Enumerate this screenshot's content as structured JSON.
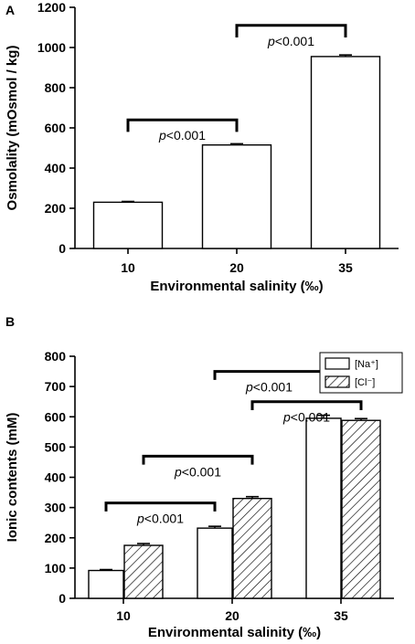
{
  "chart_data": [
    {
      "type": "bar",
      "panel_label": "A",
      "categories": [
        "10",
        "20",
        "35"
      ],
      "xlabel": "Environmental salinity (‰)",
      "ylabel": "Osmolality (mOsmol / kg)",
      "ylim": [
        0,
        1200
      ],
      "yticks": [
        "0",
        "200",
        "400",
        "600",
        "800",
        "1000",
        "1200"
      ],
      "series": [
        {
          "values": [
            230,
            515,
            955
          ],
          "errors": [
            4,
            6,
            8
          ],
          "fill": "#ffffff"
        }
      ],
      "annotations": [
        {
          "text": "p<0.001",
          "from": "10",
          "to": "20",
          "level": 640,
          "drop": 60
        },
        {
          "text": "p<0.001",
          "from": "20",
          "to": "35",
          "level": 1110,
          "drop": 60
        }
      ]
    },
    {
      "type": "bar",
      "panel_label": "B",
      "categories": [
        "10",
        "20",
        "35"
      ],
      "xlabel": "Environmental salinity (‰)",
      "ylabel": "Ionic contents (mM)",
      "ylim": [
        0,
        800
      ],
      "yticks": [
        "0",
        "100",
        "200",
        "300",
        "400",
        "500",
        "600",
        "700",
        "800"
      ],
      "legend": {
        "position": "top-right",
        "items": [
          "[Na⁺]",
          "[Cl⁻]"
        ]
      },
      "series": [
        {
          "name": "[Na⁺]",
          "values": [
            92,
            232,
            595
          ],
          "errors": [
            3,
            6,
            10
          ],
          "fill": "#ffffff"
        },
        {
          "name": "[Cl⁻]",
          "values": [
            175,
            330,
            588
          ],
          "errors": [
            6,
            6,
            6
          ],
          "fill": "hatch"
        }
      ],
      "annotations": [
        {
          "text": "p<0.001",
          "from": "10",
          "to": "20",
          "series": 0,
          "level": 315,
          "drop": 28
        },
        {
          "text": "p<0.001",
          "from": "10",
          "to": "20",
          "series": 1,
          "level": 470,
          "drop": 28
        },
        {
          "text": "p<0.001",
          "from": "20",
          "to": "35",
          "series": 0,
          "level": 750,
          "drop": 28
        },
        {
          "text": "p<0.001",
          "from": "20",
          "to": "35",
          "series": 1,
          "level": 650,
          "drop": 28
        }
      ]
    }
  ]
}
